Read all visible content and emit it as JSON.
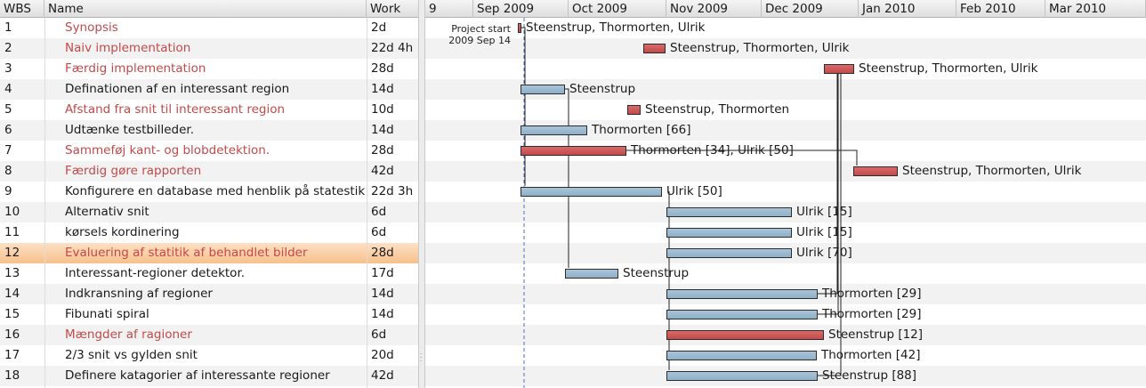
{
  "columns": {
    "wbs": "WBS",
    "name": "Name",
    "work": "Work"
  },
  "months": [
    "9",
    "Sep 2009",
    "Oct 2009",
    "Nov 2009",
    "Dec 2009",
    "Jan 2010",
    "Feb 2010",
    "Mar 2010"
  ],
  "project_start": {
    "line1": "Project start",
    "line2": "2009 Sep 14"
  },
  "tasks": [
    {
      "wbs": "1",
      "name": "Synopsis",
      "work": "2d",
      "summary": true,
      "label": "Steenstrup, Thormorten, Ulrik"
    },
    {
      "wbs": "2",
      "name": "Naiv implementation",
      "work": "22d 4h",
      "summary": true,
      "label": "Steenstrup, Thormorten, Ulrik"
    },
    {
      "wbs": "3",
      "name": "Færdig implementation",
      "work": "28d",
      "summary": true,
      "label": "Steenstrup, Thormorten, Ulrik"
    },
    {
      "wbs": "4",
      "name": "Definationen af en interessant region",
      "work": "14d",
      "summary": false,
      "label": "Steenstrup"
    },
    {
      "wbs": "5",
      "name": "Afstand fra snit til interessant region",
      "work": "10d",
      "summary": true,
      "label": "Steenstrup, Thormorten"
    },
    {
      "wbs": "6",
      "name": "Udtænke testbilleder.",
      "work": "14d",
      "summary": false,
      "label": "Thormorten [66]"
    },
    {
      "wbs": "7",
      "name": "Sammeføj kant- og blobdetektion.",
      "work": "28d",
      "summary": true,
      "label": "Thormorten [34], Ulrik [50]"
    },
    {
      "wbs": "8",
      "name": "Færdig gøre rapporten",
      "work": "42d",
      "summary": true,
      "label": "Steenstrup, Thormorten, Ulrik"
    },
    {
      "wbs": "9",
      "name": "Konfigurere en database med henblik på statestik",
      "work": "22d 3h",
      "summary": false,
      "label": "Ulrik [50]"
    },
    {
      "wbs": "10",
      "name": "Alternativ snit",
      "work": "6d",
      "summary": false,
      "label": "Ulrik [15]"
    },
    {
      "wbs": "11",
      "name": "kørsels kordinering",
      "work": "6d",
      "summary": false,
      "label": "Ulrik [15]"
    },
    {
      "wbs": "12",
      "name": "Evaluering af statitik af behandlet bilder",
      "work": "28d",
      "summary": true,
      "selected": true,
      "label": "Ulrik [70]"
    },
    {
      "wbs": "13",
      "name": "Interessant-regioner detektor.",
      "work": "17d",
      "summary": false,
      "label": "Steenstrup"
    },
    {
      "wbs": "14",
      "name": "Indkransning af regioner",
      "work": "14d",
      "summary": false,
      "label": "Thormorten [29]"
    },
    {
      "wbs": "15",
      "name": "Fibunati spiral",
      "work": "14d",
      "summary": false,
      "label": "Thormorten [29]"
    },
    {
      "wbs": "16",
      "name": "Mængder af ragioner",
      "work": "6d",
      "summary": true,
      "label": "Steenstrup [12]"
    },
    {
      "wbs": "17",
      "name": "2/3 snit vs gylden snit",
      "work": "20d",
      "summary": false,
      "label": "Thormorten [42]"
    },
    {
      "wbs": "18",
      "name": "Definere katagorier af interessante regioner",
      "work": "42d",
      "summary": false,
      "label": "Steenstrup [88]"
    }
  ],
  "colors": {
    "critical": "#c24a4a",
    "normal": "#8fb0c8",
    "selected_row": "#f7c08c",
    "today_line": "#4a70c0"
  }
}
